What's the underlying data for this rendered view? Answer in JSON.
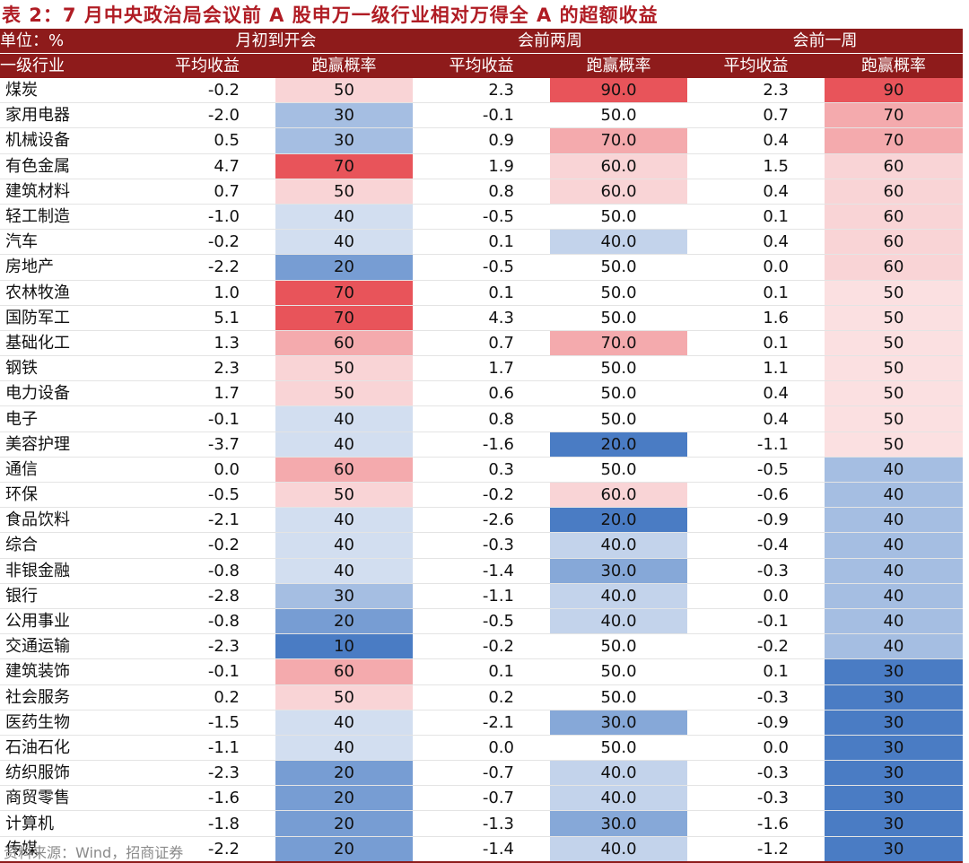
{
  "title": "表 2：7 月中央政治局会议前 A 股申万一级行业相对万得全 A 的超额收益",
  "header": {
    "unit": "单位：%",
    "groups": [
      "月初到开会",
      "会前两周",
      "会前一周"
    ],
    "col0": "一级行业",
    "sub": [
      "平均收益",
      "跑赢概率",
      "平均收益",
      "跑赢概率",
      "平均收益",
      "跑赢概率"
    ]
  },
  "colors": {
    "header_bg": "#8e1b1b",
    "title": "#b01c24",
    "high": "#e8545a",
    "low": "#4a7cc4",
    "neutral": "#ffffff"
  },
  "rows": [
    {
      "industry": "煤炭",
      "a1": "-0.2",
      "p1": "50",
      "a2": "2.3",
      "p2": "90.0",
      "a3": "2.3",
      "p3": "90"
    },
    {
      "industry": "家用电器",
      "a1": "-2.0",
      "p1": "30",
      "a2": "-0.1",
      "p2": "50.0",
      "a3": "0.7",
      "p3": "70"
    },
    {
      "industry": "机械设备",
      "a1": "0.5",
      "p1": "30",
      "a2": "0.9",
      "p2": "70.0",
      "a3": "0.4",
      "p3": "70"
    },
    {
      "industry": "有色金属",
      "a1": "4.7",
      "p1": "70",
      "a2": "1.9",
      "p2": "60.0",
      "a3": "1.5",
      "p3": "60"
    },
    {
      "industry": "建筑材料",
      "a1": "0.7",
      "p1": "50",
      "a2": "0.8",
      "p2": "60.0",
      "a3": "0.4",
      "p3": "60"
    },
    {
      "industry": "轻工制造",
      "a1": "-1.0",
      "p1": "40",
      "a2": "-0.5",
      "p2": "50.0",
      "a3": "0.1",
      "p3": "60"
    },
    {
      "industry": "汽车",
      "a1": "-0.2",
      "p1": "40",
      "a2": "0.1",
      "p2": "40.0",
      "a3": "0.4",
      "p3": "60"
    },
    {
      "industry": "房地产",
      "a1": "-2.2",
      "p1": "20",
      "a2": "-0.5",
      "p2": "50.0",
      "a3": "0.0",
      "p3": "60"
    },
    {
      "industry": "农林牧渔",
      "a1": "1.0",
      "p1": "70",
      "a2": "0.1",
      "p2": "50.0",
      "a3": "0.1",
      "p3": "50"
    },
    {
      "industry": "国防军工",
      "a1": "5.1",
      "p1": "70",
      "a2": "4.3",
      "p2": "50.0",
      "a3": "1.6",
      "p3": "50"
    },
    {
      "industry": "基础化工",
      "a1": "1.3",
      "p1": "60",
      "a2": "0.7",
      "p2": "70.0",
      "a3": "0.1",
      "p3": "50"
    },
    {
      "industry": "钢铁",
      "a1": "2.3",
      "p1": "50",
      "a2": "1.7",
      "p2": "50.0",
      "a3": "1.1",
      "p3": "50"
    },
    {
      "industry": "电力设备",
      "a1": "1.7",
      "p1": "50",
      "a2": "0.6",
      "p2": "50.0",
      "a3": "0.4",
      "p3": "50"
    },
    {
      "industry": "电子",
      "a1": "-0.1",
      "p1": "40",
      "a2": "0.8",
      "p2": "50.0",
      "a3": "0.4",
      "p3": "50"
    },
    {
      "industry": "美容护理",
      "a1": "-3.7",
      "p1": "40",
      "a2": "-1.6",
      "p2": "20.0",
      "a3": "-1.1",
      "p3": "50"
    },
    {
      "industry": "通信",
      "a1": "0.0",
      "p1": "60",
      "a2": "0.3",
      "p2": "50.0",
      "a3": "-0.5",
      "p3": "40"
    },
    {
      "industry": "环保",
      "a1": "-0.5",
      "p1": "50",
      "a2": "-0.2",
      "p2": "60.0",
      "a3": "-0.6",
      "p3": "40"
    },
    {
      "industry": "食品饮料",
      "a1": "-2.1",
      "p1": "40",
      "a2": "-2.6",
      "p2": "20.0",
      "a3": "-0.9",
      "p3": "40"
    },
    {
      "industry": "综合",
      "a1": "-0.2",
      "p1": "40",
      "a2": "-0.3",
      "p2": "40.0",
      "a3": "-0.4",
      "p3": "40"
    },
    {
      "industry": "非银金融",
      "a1": "-0.8",
      "p1": "40",
      "a2": "-1.4",
      "p2": "30.0",
      "a3": "-0.3",
      "p3": "40"
    },
    {
      "industry": "银行",
      "a1": "-2.8",
      "p1": "30",
      "a2": "-1.1",
      "p2": "40.0",
      "a3": "0.0",
      "p3": "40"
    },
    {
      "industry": "公用事业",
      "a1": "-0.8",
      "p1": "20",
      "a2": "-0.5",
      "p2": "40.0",
      "a3": "-0.1",
      "p3": "40"
    },
    {
      "industry": "交通运输",
      "a1": "-2.3",
      "p1": "10",
      "a2": "-0.2",
      "p2": "50.0",
      "a3": "-0.2",
      "p3": "40"
    },
    {
      "industry": "建筑装饰",
      "a1": "-0.1",
      "p1": "60",
      "a2": "0.1",
      "p2": "50.0",
      "a3": "0.1",
      "p3": "30"
    },
    {
      "industry": "社会服务",
      "a1": "0.2",
      "p1": "50",
      "a2": "0.2",
      "p2": "50.0",
      "a3": "-0.3",
      "p3": "30"
    },
    {
      "industry": "医药生物",
      "a1": "-1.5",
      "p1": "40",
      "a2": "-2.1",
      "p2": "30.0",
      "a3": "-0.9",
      "p3": "30"
    },
    {
      "industry": "石油石化",
      "a1": "-1.1",
      "p1": "40",
      "a2": "0.0",
      "p2": "50.0",
      "a3": "0.0",
      "p3": "30"
    },
    {
      "industry": "纺织服饰",
      "a1": "-2.3",
      "p1": "20",
      "a2": "-0.7",
      "p2": "40.0",
      "a3": "-0.3",
      "p3": "30"
    },
    {
      "industry": "商贸零售",
      "a1": "-1.6",
      "p1": "20",
      "a2": "-0.7",
      "p2": "40.0",
      "a3": "-0.3",
      "p3": "30"
    },
    {
      "industry": "计算机",
      "a1": "-1.8",
      "p1": "20",
      "a2": "-1.3",
      "p2": "30.0",
      "a3": "-1.6",
      "p3": "30"
    },
    {
      "industry": "传媒",
      "a1": "-2.2",
      "p1": "20",
      "a2": "-1.4",
      "p2": "40.0",
      "a3": "-1.2",
      "p3": "30"
    }
  ],
  "source": "资料来源：Wind，招商证券"
}
